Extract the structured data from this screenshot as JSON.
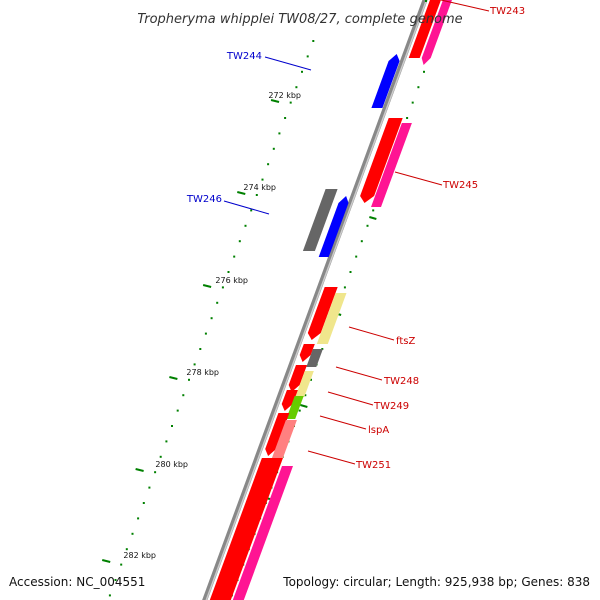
{
  "title": "Tropheryma whipplei TW08/27, complete genome",
  "footer": {
    "accession": "Accession: NC_004551",
    "topology": "Topology: circular; Length: 925,938 bp; Genes: 838"
  },
  "colors": {
    "backbone": "#888888",
    "forward_cds": "#ff0000",
    "forward_rna": "#ff1493",
    "reverse_cds": "#0000ff",
    "gray_feature": "#666666",
    "yellow_feature": "#f0e68c",
    "green_feature": "#66cc00",
    "pink_feature": "#ff8080",
    "tick": "#008000",
    "forward_label": "#cc0000",
    "reverse_label": "#0000cc"
  },
  "kbp_markers": [
    "272 kbp",
    "274 kbp",
    "276 kbp",
    "278 kbp",
    "280 kbp",
    "282 kbp"
  ],
  "gene_labels": [
    {
      "name": "TW243",
      "strand": "forward"
    },
    {
      "name": "TW244",
      "strand": "reverse"
    },
    {
      "name": "TW245",
      "strand": "forward"
    },
    {
      "name": "TW246",
      "strand": "reverse"
    },
    {
      "name": "ftsZ",
      "strand": "forward"
    },
    {
      "name": "TW248",
      "strand": "forward"
    },
    {
      "name": "TW249",
      "strand": "forward"
    },
    {
      "name": "lspA",
      "strand": "forward"
    },
    {
      "name": "TW251",
      "strand": "forward"
    }
  ]
}
